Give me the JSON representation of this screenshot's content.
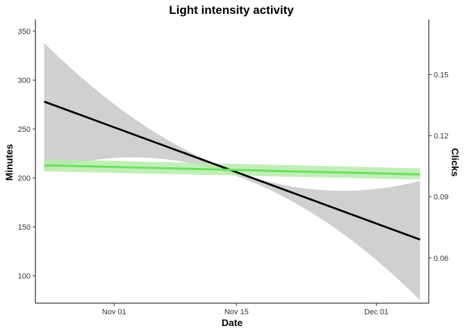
{
  "chart_data": {
    "type": "line",
    "title": "Light intensity activity",
    "xlabel": "Date",
    "ylabel": "Minutes",
    "y2label": "Clicks",
    "x_ticks": [
      {
        "label": "Nov 01",
        "day": 10
      },
      {
        "label": "Nov 15",
        "day": 24
      },
      {
        "label": "Dec 01",
        "day": 40
      }
    ],
    "xlim": [
      1,
      46
    ],
    "ylim": [
      72,
      362
    ],
    "y_ticks": [
      100,
      150,
      200,
      250,
      300,
      350
    ],
    "y2lim": [
      0.0378,
      0.1771
    ],
    "y2_ticks": [
      "0.06",
      "0.09",
      "0.12",
      "0.15"
    ],
    "grid": false,
    "series": [
      {
        "name": "Minutes",
        "axis": "left",
        "color": "#000000",
        "band_color": "#d0d0d0",
        "x": [
          2,
          24,
          45
        ],
        "values": [
          278,
          206,
          137
        ],
        "lower": [
          207,
          202,
          75
        ],
        "upper": [
          338,
          206,
          197
        ]
      },
      {
        "name": "Clicks",
        "axis": "right",
        "color": "#6be05e",
        "band_color": "#b6ecaa",
        "x": [
          2,
          45
        ],
        "values": [
          0.1055,
          0.101
        ],
        "lower": [
          0.1025,
          0.0985
        ],
        "upper": [
          0.1085,
          0.104
        ]
      }
    ]
  }
}
